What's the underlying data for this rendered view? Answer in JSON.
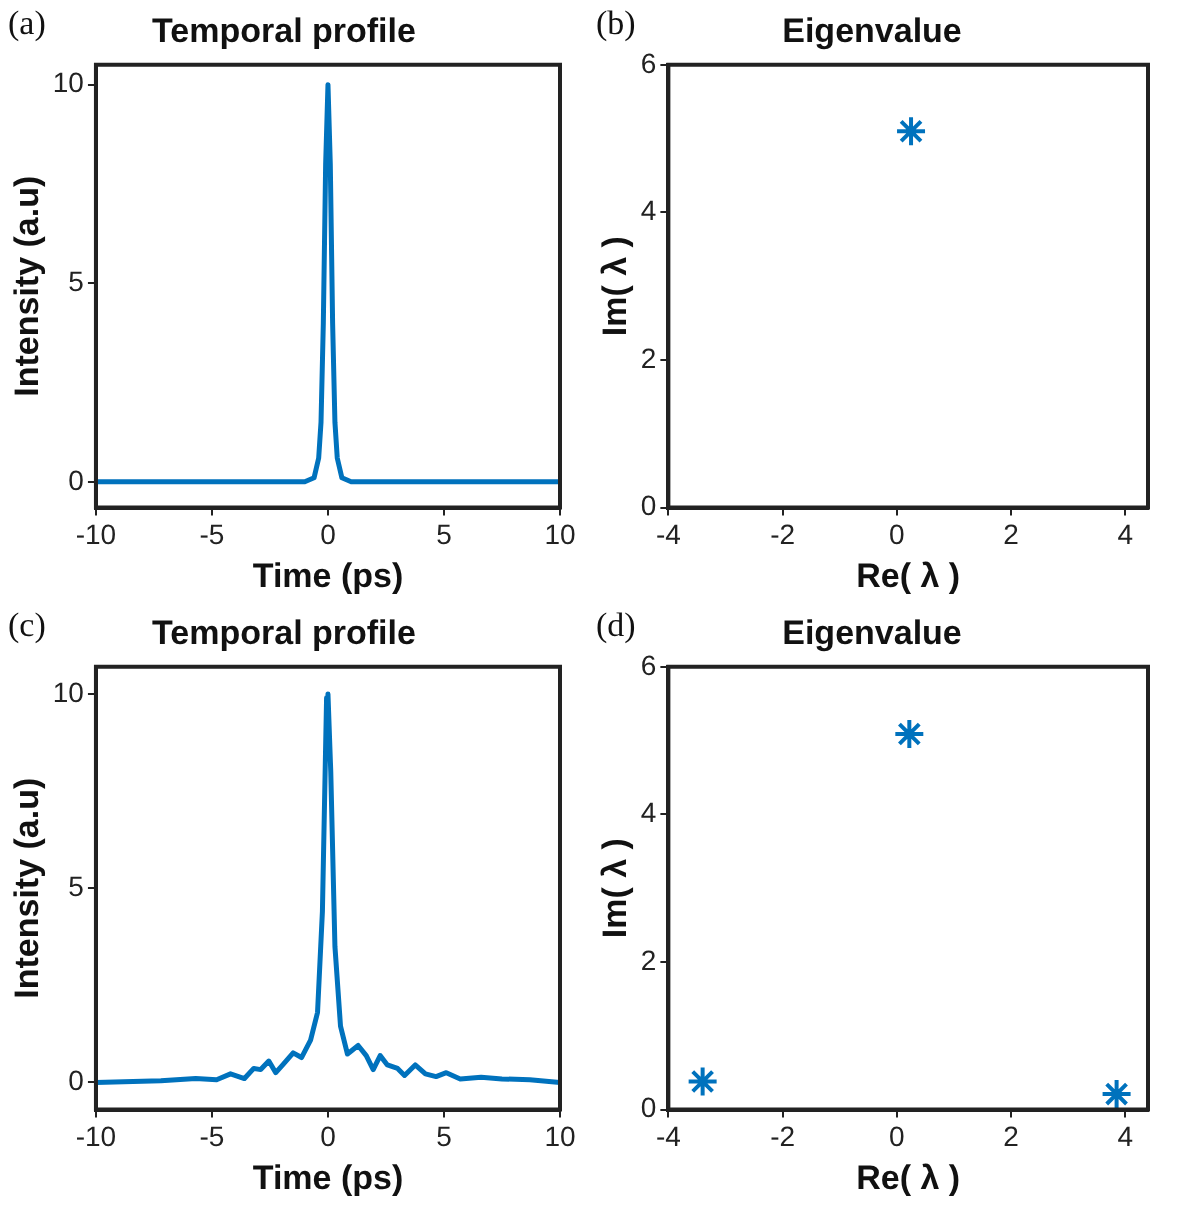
{
  "chart_data": [
    {
      "type": "line",
      "title": "Temporal profile",
      "xlabel": "Time (ps)",
      "ylabel": "Intensity (a.u)",
      "annotations": [
        "(a)"
      ],
      "color": "#0072bd",
      "marker": "none",
      "grid": false,
      "legend": false,
      "x": [
        -10,
        -1,
        -0.6,
        -0.4,
        -0.3,
        -0.2,
        -0.1,
        0,
        0.1,
        0.2,
        0.3,
        0.4,
        0.6,
        1,
        10
      ],
      "values": [
        0,
        0,
        0.1,
        0.6,
        1.5,
        4,
        8,
        10,
        8,
        4,
        1.5,
        0.6,
        0.1,
        0,
        0
      ],
      "xlim": [
        -10,
        10
      ],
      "ylim": [
        -0.65,
        10.5
      ],
      "xticks": [
        -10,
        -5,
        0,
        5,
        10
      ],
      "yticks": [
        0,
        5,
        10
      ]
    },
    {
      "type": "scatter",
      "title": "Eigenvalue",
      "xlabel": "Re( λ )",
      "ylabel": "Im( λ )",
      "annotations": [
        "(b)"
      ],
      "color": "#0072bd",
      "marker": "cross",
      "grid": false,
      "legend": false,
      "x": [
        0.25
      ],
      "values": [
        5.1
      ],
      "xlim": [
        -4,
        4.4
      ],
      "ylim": [
        0,
        6
      ],
      "xticks": [
        -4,
        -2,
        0,
        2,
        4
      ],
      "yticks": [
        0,
        2,
        4,
        6
      ]
    },
    {
      "type": "line",
      "title": "Temporal profile",
      "xlabel": "Time (ps)",
      "ylabel": "Intensity (a.u)",
      "annotations": [
        "(c)"
      ],
      "color": "#0072bd",
      "marker": "none",
      "grid": false,
      "legend": false,
      "x": [
        -10,
        -7.2,
        -5.7,
        -4.8,
        -4.2,
        -3.6,
        -3.2,
        -2.9,
        -2.55,
        -2.25,
        -1.95,
        -1.5,
        -1.14,
        -0.75,
        -0.45,
        -0.24,
        -0.06,
        0,
        0.12,
        0.3,
        0.54,
        0.84,
        1.3,
        1.65,
        1.95,
        2.25,
        2.56,
        3,
        3.3,
        3.76,
        4.2,
        4.66,
        5.1,
        5.7,
        6.6,
        7.5,
        8.7,
        10
      ],
      "values": [
        0,
        0.04,
        0.1,
        0.07,
        0.22,
        0.1,
        0.36,
        0.33,
        0.55,
        0.25,
        0.45,
        0.76,
        0.64,
        1.09,
        1.8,
        4.4,
        9.9,
        10,
        8,
        3.5,
        1.45,
        0.73,
        0.95,
        0.69,
        0.33,
        0.69,
        0.45,
        0.36,
        0.18,
        0.45,
        0.22,
        0.15,
        0.25,
        0.09,
        0.13,
        0.09,
        0.07,
        0
      ],
      "xlim": [
        -10,
        10
      ],
      "ylim": [
        -0.7,
        10.7
      ],
      "xticks": [
        -10,
        -5,
        0,
        5,
        10
      ],
      "yticks": [
        0,
        5,
        10
      ]
    },
    {
      "type": "scatter",
      "title": "Eigenvalue",
      "xlabel": "Re( λ )",
      "ylabel": "Im( λ )",
      "annotations": [
        "(d)"
      ],
      "color": "#0072bd",
      "marker": "cross",
      "grid": false,
      "legend": false,
      "x": [
        -3.4,
        0.22,
        3.85
      ],
      "values": [
        0.38,
        5.09,
        0.21
      ],
      "xlim": [
        -4,
        4.4
      ],
      "ylim": [
        0,
        6
      ],
      "xticks": [
        -4,
        -2,
        0,
        2,
        4
      ],
      "yticks": [
        0,
        2,
        4,
        6
      ]
    }
  ]
}
